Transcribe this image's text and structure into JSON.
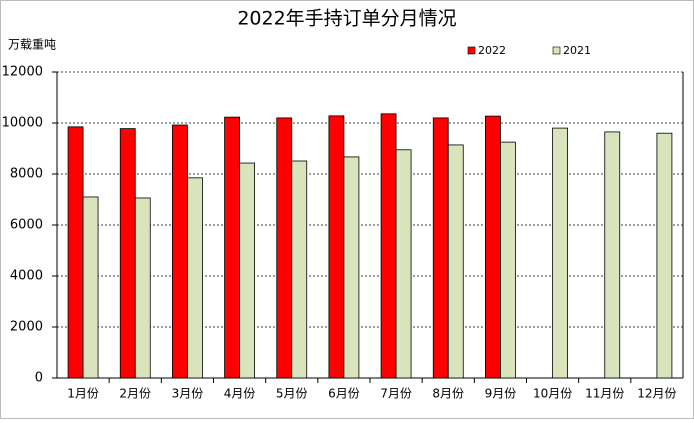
{
  "chart_data": {
    "type": "bar",
    "title": "2022年手持订单分月情况",
    "y_label": "万载重吨",
    "categories": [
      "1月份",
      "2月份",
      "3月份",
      "4月份",
      "5月份",
      "6月份",
      "7月份",
      "8月份",
      "9月份",
      "10月份",
      "11月份",
      "12月份"
    ],
    "series": [
      {
        "name": "2022",
        "color": "#ff0000",
        "values": [
          9850,
          9780,
          9920,
          10230,
          10200,
          10280,
          10360,
          10200,
          10270,
          null,
          null,
          null
        ]
      },
      {
        "name": "2021",
        "color": "#d9e4bc",
        "values": [
          7100,
          7060,
          7850,
          8430,
          8510,
          8670,
          8950,
          9140,
          9250,
          9800,
          9650,
          9600
        ]
      }
    ],
    "ylim": [
      0,
      12000
    ],
    "yticks": [
      0,
      2000,
      4000,
      6000,
      8000,
      10000,
      12000
    ],
    "grid": true
  }
}
